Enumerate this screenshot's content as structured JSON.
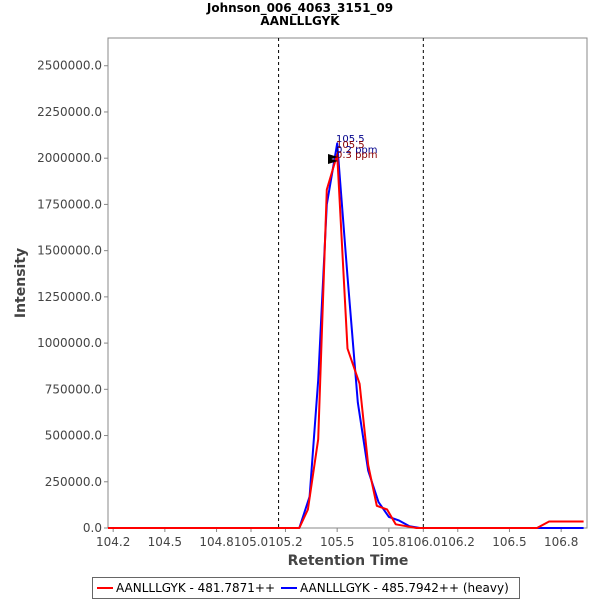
{
  "chart_data": {
    "type": "line",
    "title": "Johnson_006_4063_3151_09",
    "subtitle": "AANLLLGYK",
    "xlabel": "Retention Time",
    "ylabel": "Intensity",
    "xlim": [
      104.17,
      106.95
    ],
    "ylim": [
      0,
      2650000
    ],
    "x_ticks": [
      "104.2",
      "104.5",
      "104.8",
      "105.0",
      "105.2",
      "105.5",
      "105.8",
      "106.0",
      "106.2",
      "106.5",
      "106.8"
    ],
    "y_ticks": [
      "0.0",
      "250000.0",
      "500000.0",
      "750000.0",
      "1000000.0",
      "1250000.0",
      "1500000.0",
      "1750000.0",
      "2000000.0",
      "2250000.0",
      "2500000.0"
    ],
    "grid": false,
    "legend_position": "bottom",
    "vertical_markers": [
      105.16,
      106.0
    ],
    "series": [
      {
        "name": "AANLLLGYK - 481.7871++",
        "color": "#ff0000",
        "x": [
          104.17,
          104.3,
          104.5,
          104.7,
          104.9,
          105.1,
          105.28,
          105.33,
          105.39,
          105.44,
          105.5,
          105.56,
          105.63,
          105.68,
          105.73,
          105.79,
          105.84,
          105.9,
          105.96,
          106.02,
          106.1,
          106.3,
          106.5,
          106.66,
          106.73,
          106.8,
          106.87,
          106.93
        ],
        "y": [
          0,
          0,
          0,
          0,
          0,
          0,
          0,
          100000,
          480000,
          1830000,
          2020000,
          970000,
          780000,
          340000,
          120000,
          100000,
          20000,
          10000,
          0,
          0,
          0,
          0,
          0,
          0,
          35000,
          35000,
          35000,
          35000
        ]
      },
      {
        "name": "AANLLLGYK - 485.7942++ (heavy)",
        "color": "#0000ff",
        "x": [
          104.17,
          104.3,
          104.5,
          104.7,
          104.9,
          105.1,
          105.28,
          105.34,
          105.39,
          105.44,
          105.5,
          105.56,
          105.62,
          105.68,
          105.74,
          105.8,
          105.86,
          105.92,
          105.98,
          106.05,
          106.2,
          106.4,
          106.6,
          106.8,
          106.93
        ],
        "y": [
          0,
          0,
          0,
          0,
          0,
          0,
          0,
          170000,
          800000,
          1750000,
          2080000,
          1360000,
          680000,
          310000,
          140000,
          60000,
          40000,
          10000,
          0,
          0,
          0,
          0,
          0,
          0,
          0
        ]
      }
    ],
    "annotations": [
      {
        "text": "105.5",
        "color": "#00008b"
      },
      {
        "text": "105.5",
        "color": "#8b0000"
      },
      {
        "text": "0.2 ppm",
        "color": "#00008b"
      },
      {
        "text": "0.3 ppm",
        "color": "#8b0000"
      }
    ]
  }
}
